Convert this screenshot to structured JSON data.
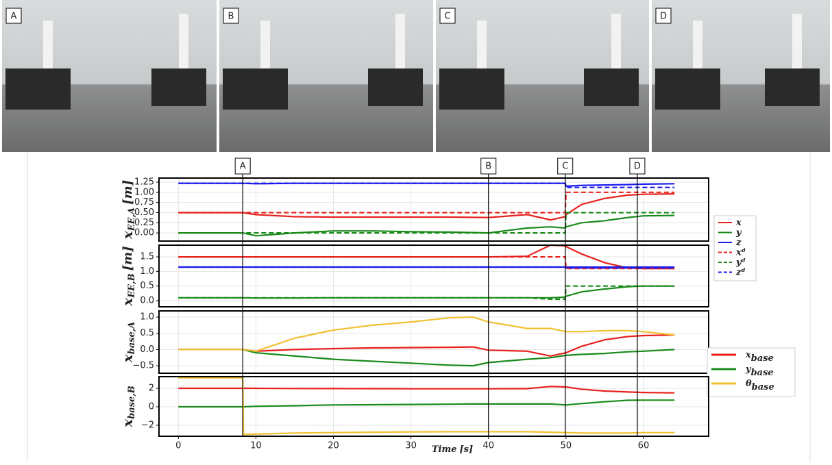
{
  "events": [
    {
      "label": "A",
      "x": 8.3
    },
    {
      "label": "B",
      "x": 40
    },
    {
      "label": "C",
      "x": 49.9
    },
    {
      "label": "D",
      "x": 59.2
    }
  ],
  "xlabel": {
    "symbol": "Time",
    "unit": "[s]"
  },
  "chart_data": [
    {
      "type": "line",
      "ylabel": {
        "symbol": "x",
        "subscript": "EE,A",
        "unit": "[m]"
      },
      "legend": "right",
      "grid": true,
      "xlim": [
        -2.5,
        68.4
      ],
      "ylim": [
        -0.2,
        1.35
      ],
      "yticks": [
        {
          "value": 0,
          "label": "0.00"
        },
        0.25,
        {
          "value": 0.5,
          "label": "0.50"
        },
        0.75,
        {
          "value": 1,
          "label": "1.00"
        },
        1.25
      ],
      "x": [
        0,
        5,
        8.3,
        10,
        15,
        20,
        25,
        30,
        35,
        40,
        45,
        48,
        49.9,
        50,
        52,
        55,
        58,
        60,
        64
      ],
      "series": [
        {
          "name": "x",
          "color": "#e8201c",
          "dash": false,
          "values": [
            0.5,
            0.5,
            0.5,
            0.45,
            0.4,
            0.39,
            0.39,
            0.39,
            0.39,
            0.38,
            0.45,
            0.32,
            0.4,
            0.45,
            0.7,
            0.85,
            0.93,
            0.95,
            0.96
          ]
        },
        {
          "name": "y",
          "color": "#1a8a1a",
          "dash": false,
          "values": [
            0,
            0,
            0,
            -0.07,
            0,
            0.05,
            0.05,
            0.03,
            0.02,
            0,
            0.12,
            0.15,
            0.12,
            0.15,
            0.25,
            0.3,
            0.38,
            0.42,
            0.43
          ]
        },
        {
          "name": "z",
          "color": "#1a1aee",
          "dash": false,
          "values": [
            1.22,
            1.22,
            1.22,
            1.21,
            1.22,
            1.22,
            1.22,
            1.22,
            1.22,
            1.22,
            1.22,
            1.22,
            1.22,
            1.15,
            1.17,
            1.18,
            1.19,
            1.2,
            1.21
          ]
        },
        {
          "name": "xᵈ",
          "color": "#e8201c",
          "dash": true,
          "values": [
            0.5,
            0.5,
            0.5,
            0.5,
            0.5,
            0.5,
            0.5,
            0.5,
            0.5,
            0.5,
            0.5,
            0.5,
            0.5,
            1,
            1,
            1,
            1,
            1,
            1
          ]
        },
        {
          "name": "yᵈ",
          "color": "#1a8a1a",
          "dash": true,
          "values": [
            0,
            0,
            0,
            0,
            0,
            0,
            0,
            0,
            0,
            0,
            0,
            0,
            0,
            0.5,
            0.5,
            0.5,
            0.5,
            0.5,
            0.5
          ]
        },
        {
          "name": "zᵈ",
          "color": "#1a1aee",
          "dash": true,
          "values": [
            1.22,
            1.22,
            1.22,
            1.22,
            1.22,
            1.22,
            1.22,
            1.22,
            1.22,
            1.22,
            1.22,
            1.22,
            1.22,
            1.12,
            1.12,
            1.12,
            1.12,
            1.12,
            1.12
          ]
        }
      ]
    },
    {
      "type": "line",
      "ylabel": {
        "symbol": "x",
        "subscript": "EE,B",
        "unit": "[m]"
      },
      "grid": true,
      "xlim": [
        -2.5,
        68.4
      ],
      "ylim": [
        -0.21,
        1.9
      ],
      "yticks": [
        {
          "value": 0,
          "label": "0.0"
        },
        0.5,
        {
          "value": 1,
          "label": "1.0"
        },
        1.5
      ],
      "x": [
        0,
        5,
        8.3,
        10,
        15,
        20,
        25,
        30,
        35,
        40,
        45,
        48,
        49.9,
        50,
        52,
        55,
        58,
        60,
        64
      ],
      "series": [
        {
          "color": "#e8201c",
          "dash": false,
          "values": [
            1.5,
            1.5,
            1.5,
            1.5,
            1.5,
            1.5,
            1.5,
            1.5,
            1.5,
            1.5,
            1.52,
            1.9,
            1.88,
            1.85,
            1.6,
            1.3,
            1.12,
            1.1,
            1.1
          ]
        },
        {
          "color": "#1a8a1a",
          "dash": false,
          "values": [
            0.1,
            0.1,
            0.1,
            0.09,
            0.09,
            0.1,
            0.1,
            0.1,
            0.1,
            0.1,
            0.1,
            0.1,
            0.12,
            0.15,
            0.3,
            0.4,
            0.48,
            0.5,
            0.5
          ]
        },
        {
          "color": "#1a1aee",
          "dash": false,
          "values": [
            1.15,
            1.15,
            1.15,
            1.15,
            1.15,
            1.15,
            1.15,
            1.15,
            1.15,
            1.15,
            1.15,
            1.15,
            1.15,
            1.15,
            1.15,
            1.15,
            1.15,
            1.15,
            1.15
          ]
        },
        {
          "color": "#e8201c",
          "dash": true,
          "values": [
            1.5,
            1.5,
            1.5,
            1.5,
            1.5,
            1.5,
            1.5,
            1.5,
            1.5,
            1.5,
            1.5,
            1.5,
            1.5,
            1.1,
            1.1,
            1.1,
            1.1,
            1.1,
            1.1
          ]
        },
        {
          "color": "#1a8a1a",
          "dash": true,
          "values": [
            0.1,
            0.1,
            0.1,
            0.1,
            0.1,
            0.1,
            0.1,
            0.1,
            0.1,
            0.1,
            0.1,
            0.05,
            0.05,
            0.5,
            0.5,
            0.5,
            0.5,
            0.5,
            0.5
          ]
        },
        {
          "color": "#1a1aee",
          "dash": true,
          "values": [
            1.15,
            1.15,
            1.15,
            1.15,
            1.15,
            1.15,
            1.15,
            1.15,
            1.15,
            1.15,
            1.15,
            1.15,
            1.15,
            1.12,
            1.12,
            1.12,
            1.12,
            1.12,
            1.12
          ]
        }
      ]
    },
    {
      "type": "line",
      "ylabel": {
        "symbol": "x",
        "subscript": "base,A"
      },
      "legend": "right",
      "grid": true,
      "xlim": [
        -2.5,
        68.4
      ],
      "ylim": [
        -0.73,
        1.19
      ],
      "yticks": [
        {
          "value": -0.5,
          "label": "−0.5"
        },
        {
          "value": 0,
          "label": "0.0"
        },
        0.5,
        {
          "value": 1,
          "label": "1.0"
        }
      ],
      "x": [
        0,
        5,
        8.3,
        10,
        15,
        20,
        25,
        30,
        35,
        38,
        40,
        45,
        48,
        50,
        52,
        55,
        58,
        60,
        64
      ],
      "series": [
        {
          "name": "x",
          "subscript": "base",
          "color": "#e8201c",
          "dash": false,
          "values": [
            0,
            0,
            0,
            -0.05,
            0,
            0.03,
            0.05,
            0.06,
            0.07,
            0.08,
            -0.02,
            -0.05,
            -0.2,
            -0.1,
            0.1,
            0.3,
            0.4,
            0.43,
            0.45
          ]
        },
        {
          "name": "y",
          "subscript": "base",
          "color": "#1a8a1a",
          "dash": false,
          "values": [
            0,
            0,
            0,
            -0.1,
            -0.2,
            -0.3,
            -0.36,
            -0.42,
            -0.48,
            -0.5,
            -0.4,
            -0.3,
            -0.25,
            -0.18,
            -0.15,
            -0.12,
            -0.07,
            -0.05,
            0
          ]
        },
        {
          "name": "θ",
          "subscript": "base",
          "color": "#f0c030",
          "dash": false,
          "values": [
            0,
            0,
            0,
            -0.05,
            0.35,
            0.6,
            0.75,
            0.85,
            0.98,
            1,
            0.85,
            0.65,
            0.65,
            0.55,
            0.55,
            0.58,
            0.58,
            0.55,
            0.45
          ]
        }
      ]
    },
    {
      "type": "line",
      "ylabel": {
        "symbol": "x",
        "subscript": "base,B"
      },
      "grid": true,
      "xlim": [
        -2.5,
        68.4
      ],
      "ylim": [
        -3.19,
        3.26
      ],
      "yticks": [
        {
          "value": -2,
          "label": "−2"
        },
        0,
        2
      ],
      "xticks": [
        0,
        10,
        20,
        30,
        40,
        50,
        60
      ],
      "x": [
        0,
        5,
        8.3,
        8.4,
        10,
        15,
        20,
        25,
        30,
        35,
        38,
        40,
        45,
        48,
        50,
        52,
        55,
        58,
        60,
        64
      ],
      "series": [
        {
          "color": "#e8201c",
          "dash": false,
          "values": [
            2,
            2,
            2,
            2,
            2,
            1.98,
            1.97,
            1.96,
            1.95,
            1.95,
            1.95,
            1.95,
            1.96,
            2.2,
            2.15,
            1.9,
            1.7,
            1.6,
            1.55,
            1.5
          ]
        },
        {
          "color": "#1a8a1a",
          "dash": false,
          "values": [
            0,
            0,
            0,
            0,
            0.05,
            0.12,
            0.2,
            0.22,
            0.25,
            0.28,
            0.3,
            0.3,
            0.3,
            0.3,
            0.2,
            0.35,
            0.55,
            0.7,
            0.72,
            0.72
          ]
        },
        {
          "color": "#f0c030",
          "dash": false,
          "values": [
            3.14,
            3.14,
            3.14,
            -3,
            -2.95,
            -2.85,
            -2.8,
            -2.75,
            -2.72,
            -2.7,
            -2.7,
            -2.7,
            -2.7,
            -2.75,
            -2.8,
            -2.85,
            -2.85,
            -2.85,
            -2.8,
            -2.8
          ]
        }
      ]
    }
  ]
}
